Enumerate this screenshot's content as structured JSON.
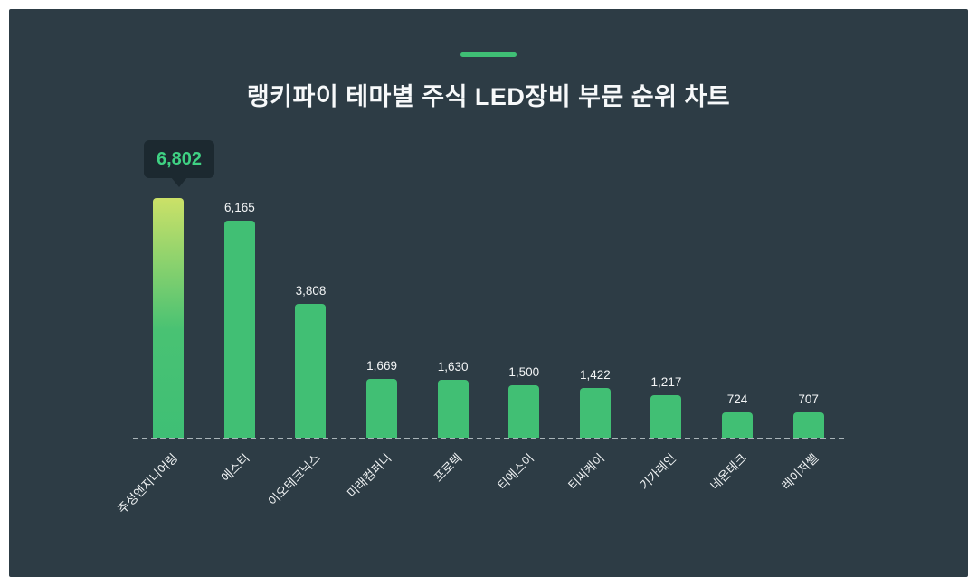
{
  "panel": {
    "page_background": "#ffffff",
    "background": "#2d3c45"
  },
  "header": {
    "accent_color": "#3fbf75",
    "title": "랭키파이 테마별 주식 LED장비 부문 순위 차트"
  },
  "tooltip": {
    "value": "6,802",
    "background": "#1c2930",
    "text_color": "#3fd183"
  },
  "chart_data": {
    "type": "bar",
    "title": "랭키파이 테마별 주식 LED장비 부문 순위 차트",
    "categories": [
      "주성엔지니어링",
      "에스티",
      "이오테크닉스",
      "미래컴퍼니",
      "프로텍",
      "티에스이",
      "티씨케이",
      "기가레인",
      "네온테크",
      "레이저쎌"
    ],
    "values": [
      6802,
      6165,
      3808,
      1669,
      1630,
      1500,
      1422,
      1217,
      724,
      707
    ],
    "value_labels": [
      "6,802",
      "6,165",
      "3,808",
      "1,669",
      "1,630",
      "1,500",
      "1,422",
      "1,217",
      "724",
      "707"
    ],
    "highlight_index": 0,
    "bar_color": "#41bf74",
    "highlight_gradient_top": "#cbe168",
    "highlight_gradient_mid": "#49c273",
    "highlight_gradient_bottom": "#3fbf75",
    "ylim": [
      0,
      6802
    ],
    "xlabel": "",
    "ylabel": "",
    "grid": "off",
    "legend": "none",
    "baseline_style": "dashed"
  }
}
